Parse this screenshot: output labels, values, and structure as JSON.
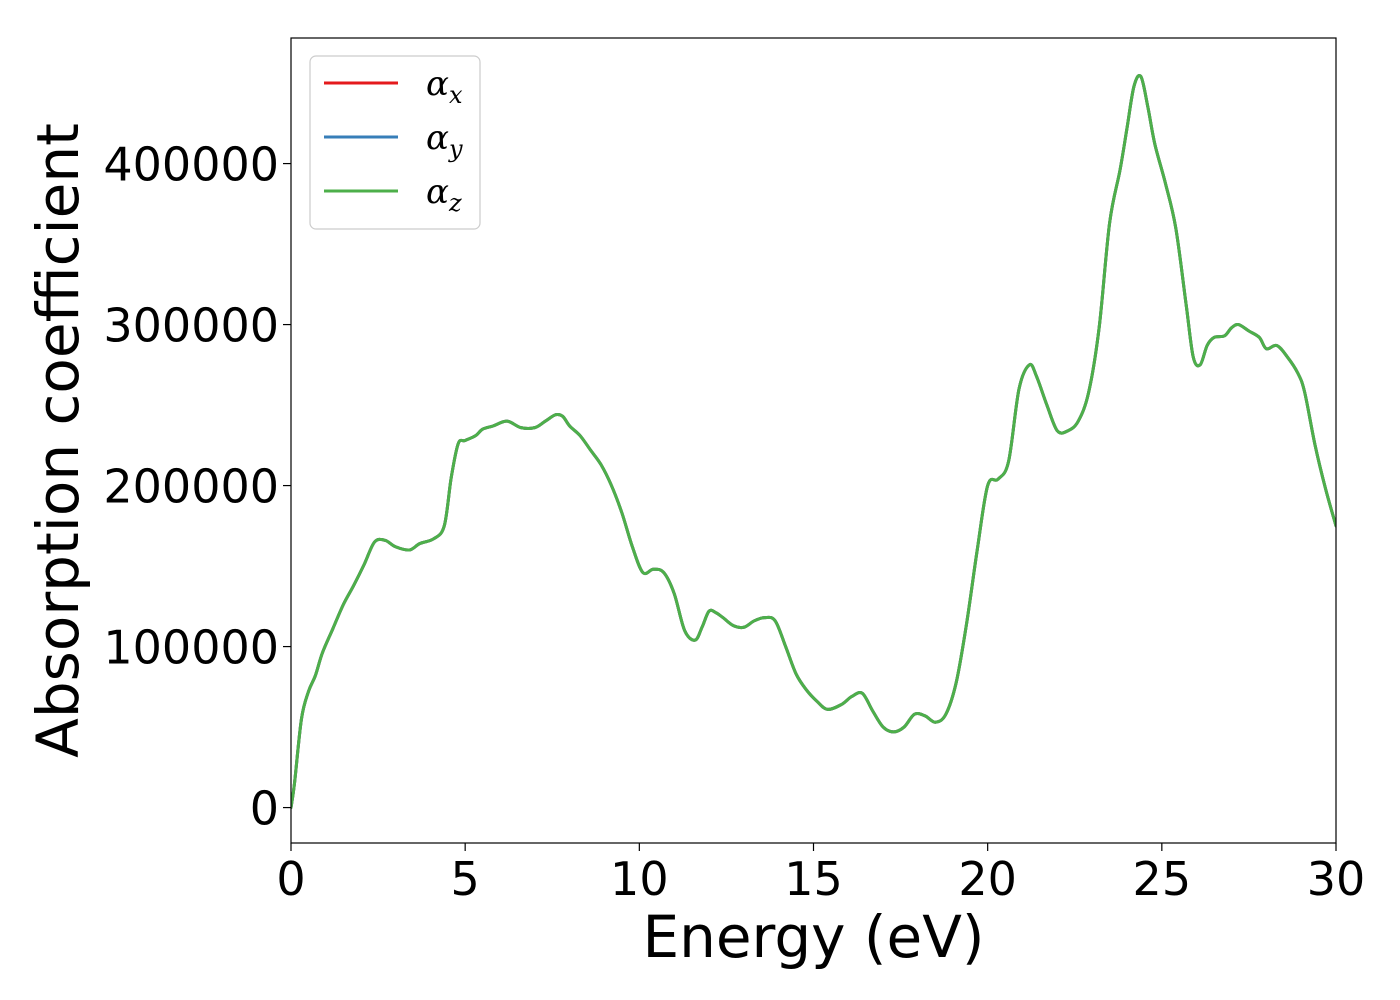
{
  "chart_data": {
    "type": "line",
    "title": "",
    "xlabel": "Energy (eV)",
    "ylabel": "Absorption coefficient",
    "xlim": [
      0,
      30
    ],
    "ylim": [
      -22000,
      478000
    ],
    "xticks": [
      0,
      5,
      10,
      15,
      20,
      25,
      30
    ],
    "xtick_labels": [
      "0",
      "5",
      "10",
      "15",
      "20",
      "25",
      "30"
    ],
    "yticks": [
      0,
      100000,
      200000,
      300000,
      400000
    ],
    "ytick_labels": [
      "0",
      "100000",
      "200000",
      "300000",
      "400000"
    ],
    "grid": false,
    "legend_position": "top-left",
    "x": [
      0,
      0.1,
      0.3,
      0.5,
      0.7,
      0.9,
      1.2,
      1.5,
      1.8,
      2.1,
      2.4,
      2.7,
      3.0,
      3.4,
      3.7,
      4.1,
      4.4,
      4.6,
      4.8,
      5.0,
      5.3,
      5.5,
      5.8,
      6.2,
      6.6,
      7.0,
      7.3,
      7.6,
      7.8,
      8.0,
      8.3,
      8.6,
      8.9,
      9.2,
      9.5,
      9.8,
      10.1,
      10.4,
      10.7,
      11.0,
      11.3,
      11.6,
      11.8,
      12.0,
      12.2,
      12.4,
      12.7,
      13.0,
      13.3,
      13.6,
      13.9,
      14.2,
      14.5,
      14.8,
      15.1,
      15.4,
      15.8,
      16.1,
      16.4,
      16.7,
      17.0,
      17.3,
      17.6,
      17.9,
      18.2,
      18.5,
      18.8,
      19.1,
      19.4,
      19.7,
      20.0,
      20.3,
      20.6,
      20.9,
      21.2,
      21.4,
      21.7,
      22.0,
      22.3,
      22.6,
      22.9,
      23.2,
      23.5,
      23.8,
      24.0,
      24.2,
      24.4,
      24.6,
      24.8,
      25.1,
      25.4,
      25.7,
      25.9,
      26.1,
      26.3,
      26.5,
      26.8,
      27.0,
      27.2,
      27.5,
      27.8,
      28.0,
      28.3,
      28.6,
      28.9,
      29.1,
      29.4,
      29.7,
      30.0
    ],
    "series": [
      {
        "name": "α_x",
        "color": "#e41a1c",
        "y": [
          0,
          15000,
          55000,
          72000,
          82000,
          96000,
          111000,
          126000,
          138000,
          151000,
          165000,
          166000,
          162000,
          160000,
          164000,
          167000,
          175000,
          205000,
          226000,
          228000,
          231000,
          235000,
          237000,
          240000,
          236000,
          236000,
          240000,
          244000,
          243000,
          237000,
          231000,
          222000,
          213000,
          200000,
          183000,
          162000,
          146000,
          148000,
          146000,
          133000,
          110000,
          104000,
          112000,
          122000,
          121000,
          118000,
          113000,
          112000,
          116000,
          118000,
          116000,
          100000,
          83000,
          73000,
          66000,
          61000,
          64000,
          69000,
          71000,
          60000,
          50000,
          47000,
          50000,
          58000,
          57000,
          53000,
          58000,
          78000,
          115000,
          160000,
          200000,
          204000,
          215000,
          260000,
          275000,
          268000,
          250000,
          234000,
          234000,
          240000,
          258000,
          298000,
          363000,
          396000,
          422000,
          448000,
          454000,
          435000,
          412000,
          388000,
          360000,
          312000,
          280000,
          275000,
          287000,
          292000,
          293000,
          298000,
          300000,
          296000,
          292000,
          285000,
          287000,
          280000,
          270000,
          258000,
          225000,
          198000,
          175000
        ]
      },
      {
        "name": "α_y",
        "color": "#377eb8",
        "y": [
          0,
          15000,
          55000,
          72000,
          82000,
          96000,
          111000,
          126000,
          138000,
          151000,
          165000,
          166000,
          162000,
          160000,
          164000,
          167000,
          175000,
          205000,
          226000,
          228000,
          231000,
          235000,
          237000,
          240000,
          236000,
          236000,
          240000,
          244000,
          243000,
          237000,
          231000,
          222000,
          213000,
          200000,
          183000,
          162000,
          146000,
          148000,
          146000,
          133000,
          110000,
          104000,
          112000,
          122000,
          121000,
          118000,
          113000,
          112000,
          116000,
          118000,
          116000,
          100000,
          83000,
          73000,
          66000,
          61000,
          64000,
          69000,
          71000,
          60000,
          50000,
          47000,
          50000,
          58000,
          57000,
          53000,
          58000,
          78000,
          115000,
          160000,
          200000,
          204000,
          215000,
          260000,
          275000,
          268000,
          250000,
          234000,
          234000,
          240000,
          258000,
          298000,
          363000,
          396000,
          422000,
          448000,
          454000,
          435000,
          412000,
          388000,
          360000,
          312000,
          280000,
          275000,
          287000,
          292000,
          293000,
          298000,
          300000,
          296000,
          292000,
          285000,
          287000,
          280000,
          270000,
          258000,
          225000,
          198000,
          175000
        ]
      },
      {
        "name": "α_z",
        "color": "#4daf4a",
        "y": [
          0,
          15000,
          55000,
          72000,
          82000,
          96000,
          111000,
          126000,
          138000,
          151000,
          165000,
          166000,
          162000,
          160000,
          164000,
          167000,
          175000,
          205000,
          226000,
          228000,
          231000,
          235000,
          237000,
          240000,
          236000,
          236000,
          240000,
          244000,
          243000,
          237000,
          231000,
          222000,
          213000,
          200000,
          183000,
          162000,
          146000,
          148000,
          146000,
          133000,
          110000,
          104000,
          112000,
          122000,
          121000,
          118000,
          113000,
          112000,
          116000,
          118000,
          116000,
          100000,
          83000,
          73000,
          66000,
          61000,
          64000,
          69000,
          71000,
          60000,
          50000,
          47000,
          50000,
          58000,
          57000,
          53000,
          58000,
          78000,
          115000,
          160000,
          200000,
          204000,
          215000,
          260000,
          275000,
          268000,
          250000,
          234000,
          234000,
          240000,
          258000,
          298000,
          363000,
          396000,
          422000,
          448000,
          454000,
          435000,
          412000,
          388000,
          360000,
          312000,
          280000,
          275000,
          287000,
          292000,
          293000,
          298000,
          300000,
          296000,
          292000,
          285000,
          287000,
          280000,
          270000,
          258000,
          225000,
          198000,
          175000
        ]
      }
    ],
    "legend": [
      {
        "symbol": "α",
        "sub": "x",
        "color": "#e41a1c"
      },
      {
        "symbol": "α",
        "sub": "y",
        "color": "#377eb8"
      },
      {
        "symbol": "α",
        "sub": "z",
        "color": "#4daf4a"
      }
    ]
  }
}
